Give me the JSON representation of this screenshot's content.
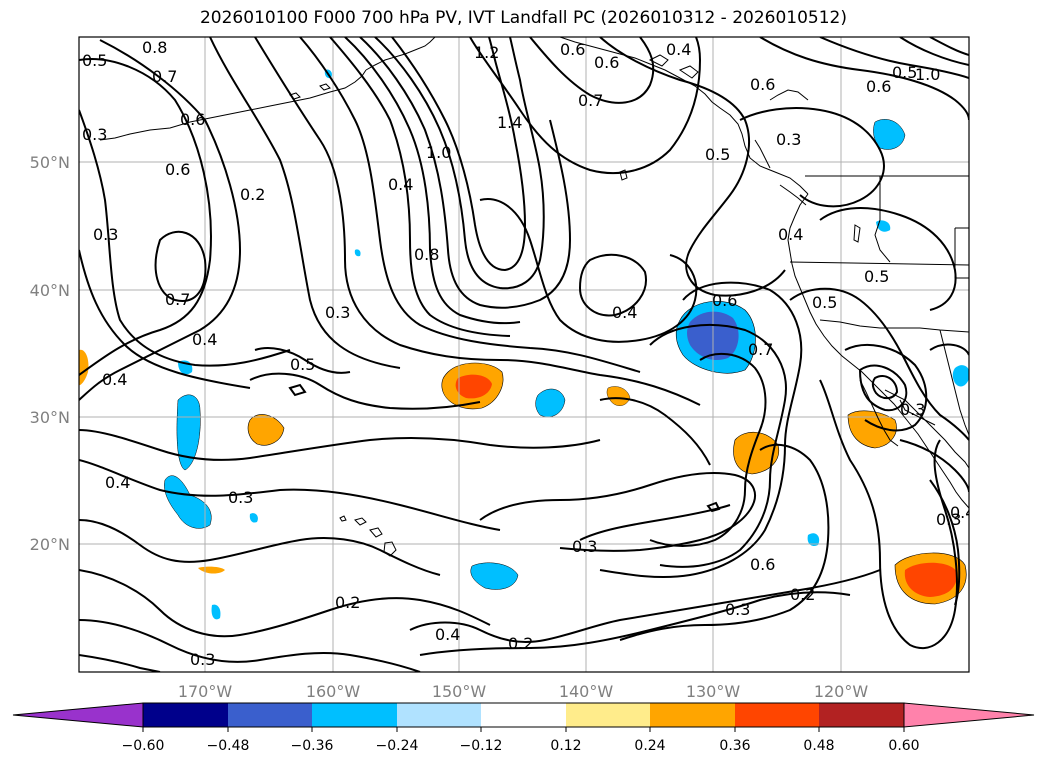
{
  "title": "2026010100 F000 700 hPa PV, IVT Landfall PC (2026010312 - 2026010512)",
  "map": {
    "lat_ticks": [
      {
        "value": 50,
        "label": "50°N"
      },
      {
        "value": 40,
        "label": "40°N"
      },
      {
        "value": 30,
        "label": "30°N"
      },
      {
        "value": 20,
        "label": "20°N"
      }
    ],
    "lon_ticks": [
      {
        "value": -170,
        "label": "170°W"
      },
      {
        "value": -160,
        "label": "160°W"
      },
      {
        "value": -150,
        "label": "150°W"
      },
      {
        "value": -140,
        "label": "140°W"
      },
      {
        "value": -130,
        "label": "130°W"
      },
      {
        "value": -120,
        "label": "120°W"
      }
    ],
    "contour_labels": [
      "0.8",
      "0.7",
      "0.6",
      "0.5",
      "0.3",
      "0.6",
      "0.3",
      "0.2",
      "0.7",
      "0.4",
      "0.4",
      "0.5",
      "0.3",
      "0.4",
      "0.8",
      "1.0",
      "1.2",
      "1.4",
      "0.6",
      "0.6",
      "0.7",
      "0.6",
      "0.5",
      "0.3",
      "0.6",
      "1.0",
      "0.4",
      "0.5",
      "0.4",
      "0.6",
      "0.7",
      "0.5",
      "0.4",
      "0.5",
      "0.3",
      "0.4",
      "0.2",
      "0.3",
      "0.4",
      "0.2",
      "0.3",
      "0.6",
      "0.3",
      "0.2",
      "0.3",
      "0.4",
      "0.3"
    ]
  },
  "colorbar": {
    "colors": [
      "#9932CC",
      "#00008B",
      "#3A5FCD",
      "#00BFFF",
      "#B0E2FF",
      "#FFFFFF",
      "#FFEC8B",
      "#FFA500",
      "#FF4500",
      "#B22222",
      "#FF82AB"
    ],
    "tick_labels": [
      "−0.60",
      "−0.48",
      "−0.36",
      "−0.24",
      "−0.12",
      "0.12",
      "0.24",
      "0.36",
      "0.48",
      "0.60"
    ]
  }
}
